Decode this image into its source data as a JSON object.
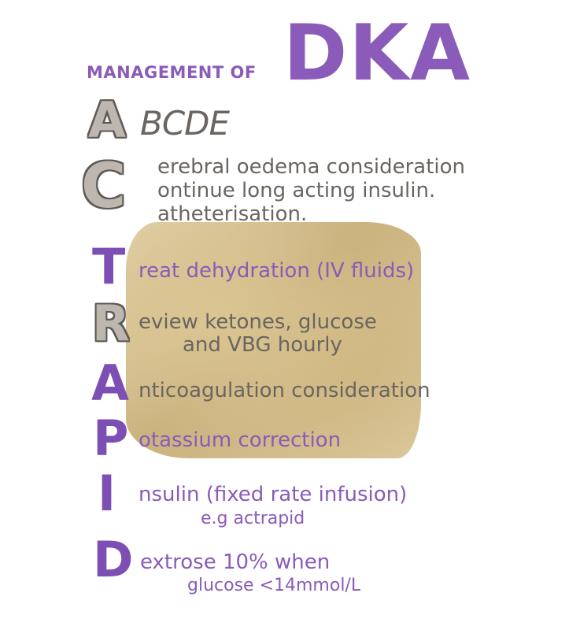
{
  "title": {
    "prefix": "MANAGEMENT OF",
    "main": "DKA"
  },
  "acronym": [
    {
      "letter": "A",
      "lines": [
        "BCDE"
      ]
    },
    {
      "letter": "C",
      "lines": [
        "erebral oedema consideration",
        "ontinue long acting insulin.",
        "atheterisation."
      ]
    },
    {
      "letter": "T",
      "lines": [
        "reat dehydration (IV fluids)"
      ]
    },
    {
      "letter": "R",
      "lines": [
        "eview ketones, glucose",
        "and VBG hourly"
      ]
    },
    {
      "letter": "A",
      "lines": [
        "nticoagulation consideration"
      ]
    },
    {
      "letter": "P",
      "lines": [
        "otassium correction"
      ]
    },
    {
      "letter": "I",
      "lines": [
        "nsulin (fixed rate infusion)",
        "e.g actrapid"
      ]
    },
    {
      "letter": "D",
      "lines": [
        "extrose 10% when",
        "glucose <14mmol/L"
      ]
    }
  ],
  "colors": {
    "purple": "#8a5bb8",
    "grey": "#6a6560",
    "smear": "#d2bb86"
  }
}
